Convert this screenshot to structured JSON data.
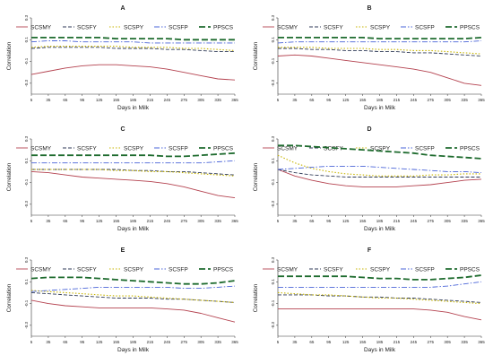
{
  "legend_labels": [
    "SCSMY",
    "SCSFY",
    "SCSPY",
    "SCSFP",
    "PPSCS"
  ],
  "colors": {
    "SCSMY": "#b4424f",
    "SCSFY": "#2f3a57",
    "SCSPY": "#c7b400",
    "SCSFP": "#4a64d8",
    "PPSCS": "#1e6b2e",
    "axis": "#333333",
    "background": "#ffffff"
  },
  "chart_data": [
    {
      "type": "line",
      "title": "A",
      "xlabel": "Days in Milk",
      "ylabel": "Correlation",
      "x": [
        5,
        35,
        65,
        95,
        125,
        155,
        185,
        215,
        245,
        275,
        305,
        335,
        365
      ],
      "x_ticks": [
        "5",
        "35",
        "65",
        "95",
        "125",
        "155",
        "185",
        "215",
        "245",
        "275",
        "305",
        "335",
        "365"
      ],
      "ylim": [
        -0.4,
        0.3
      ],
      "y_ticks": [
        "-0.3",
        "-0.1",
        "0.1",
        "0.3"
      ],
      "series": [
        {
          "name": "SCSMY",
          "values": [
            -0.22,
            -0.19,
            -0.16,
            -0.14,
            -0.13,
            -0.13,
            -0.14,
            -0.15,
            -0.17,
            -0.2,
            -0.23,
            -0.26,
            -0.27
          ]
        },
        {
          "name": "SCSFY",
          "values": [
            0.02,
            0.03,
            0.03,
            0.03,
            0.03,
            0.02,
            0.02,
            0.02,
            0.01,
            0.01,
            0.0,
            -0.01,
            -0.01
          ]
        },
        {
          "name": "SCSPY",
          "values": [
            0.03,
            0.04,
            0.04,
            0.04,
            0.04,
            0.04,
            0.03,
            0.03,
            0.03,
            0.02,
            0.02,
            0.01,
            0.0
          ]
        },
        {
          "name": "SCSFP",
          "values": [
            0.08,
            0.09,
            0.09,
            0.08,
            0.08,
            0.08,
            0.08,
            0.07,
            0.07,
            0.07,
            0.07,
            0.07,
            0.07
          ]
        },
        {
          "name": "PPSCS",
          "values": [
            0.12,
            0.12,
            0.12,
            0.12,
            0.12,
            0.11,
            0.11,
            0.11,
            0.11,
            0.1,
            0.1,
            0.1,
            0.1
          ]
        }
      ]
    },
    {
      "type": "line",
      "title": "B",
      "xlabel": "Days in Milk",
      "ylabel": "Correlation",
      "x": [
        5,
        35,
        65,
        95,
        125,
        155,
        185,
        215,
        245,
        275,
        305,
        335,
        365
      ],
      "x_ticks": [
        "5",
        "35",
        "65",
        "95",
        "125",
        "155",
        "185",
        "215",
        "245",
        "275",
        "305",
        "335",
        "365"
      ],
      "ylim": [
        -0.4,
        0.3
      ],
      "y_ticks": [
        "-0.3",
        "-0.1",
        "0.1",
        "0.3"
      ],
      "series": [
        {
          "name": "SCSMY",
          "values": [
            -0.05,
            -0.04,
            -0.05,
            -0.07,
            -0.09,
            -0.11,
            -0.13,
            -0.15,
            -0.17,
            -0.2,
            -0.25,
            -0.3,
            -0.32
          ]
        },
        {
          "name": "SCSFY",
          "values": [
            0.02,
            0.02,
            0.01,
            0.01,
            0.0,
            0.0,
            -0.01,
            -0.01,
            -0.02,
            -0.02,
            -0.03,
            -0.04,
            -0.05
          ]
        },
        {
          "name": "SCSPY",
          "values": [
            0.03,
            0.03,
            0.03,
            0.02,
            0.02,
            0.02,
            0.01,
            0.01,
            0.0,
            0.0,
            -0.01,
            -0.02,
            -0.03
          ]
        },
        {
          "name": "SCSFP",
          "values": [
            0.07,
            0.08,
            0.08,
            0.08,
            0.08,
            0.08,
            0.08,
            0.08,
            0.08,
            0.08,
            0.08,
            0.08,
            0.09
          ]
        },
        {
          "name": "PPSCS",
          "values": [
            0.12,
            0.12,
            0.12,
            0.12,
            0.12,
            0.12,
            0.11,
            0.11,
            0.11,
            0.11,
            0.11,
            0.11,
            0.12
          ]
        }
      ]
    },
    {
      "type": "line",
      "title": "C",
      "xlabel": "Days in Milk",
      "ylabel": "Correlation",
      "x": [
        5,
        35,
        65,
        95,
        125,
        155,
        185,
        215,
        245,
        275,
        305,
        335,
        365
      ],
      "x_ticks": [
        "5",
        "35",
        "65",
        "95",
        "125",
        "155",
        "185",
        "215",
        "245",
        "275",
        "305",
        "335",
        "365"
      ],
      "ylim": [
        -0.4,
        0.3
      ],
      "y_ticks": [
        "-0.3",
        "-0.1",
        "0.1",
        "0.3"
      ],
      "series": [
        {
          "name": "SCSMY",
          "values": [
            0.0,
            -0.01,
            -0.03,
            -0.05,
            -0.06,
            -0.07,
            -0.08,
            -0.09,
            -0.11,
            -0.14,
            -0.18,
            -0.22,
            -0.24
          ]
        },
        {
          "name": "SCSFY",
          "values": [
            0.02,
            0.02,
            0.02,
            0.02,
            0.02,
            0.02,
            0.01,
            0.01,
            0.0,
            0.0,
            -0.01,
            -0.02,
            -0.03
          ]
        },
        {
          "name": "SCSPY",
          "values": [
            0.02,
            0.02,
            0.02,
            0.02,
            0.02,
            0.01,
            0.01,
            0.0,
            0.0,
            -0.01,
            -0.02,
            -0.03,
            -0.04
          ]
        },
        {
          "name": "SCSFP",
          "values": [
            0.08,
            0.08,
            0.08,
            0.08,
            0.08,
            0.08,
            0.08,
            0.08,
            0.08,
            0.08,
            0.08,
            0.09,
            0.1
          ]
        },
        {
          "name": "PPSCS",
          "values": [
            0.15,
            0.15,
            0.15,
            0.15,
            0.15,
            0.15,
            0.15,
            0.15,
            0.14,
            0.14,
            0.15,
            0.16,
            0.17
          ]
        }
      ]
    },
    {
      "type": "line",
      "title": "D",
      "xlabel": "Days in Milk",
      "ylabel": "Correlation",
      "x": [
        5,
        35,
        65,
        95,
        125,
        155,
        185,
        215,
        245,
        275,
        305,
        335,
        365
      ],
      "x_ticks": [
        "5",
        "35",
        "65",
        "95",
        "125",
        "155",
        "185",
        "215",
        "245",
        "275",
        "305",
        "335",
        "365"
      ],
      "ylim": [
        -0.4,
        0.3
      ],
      "y_ticks": [
        "-0.3",
        "-0.1",
        "0.1",
        "0.3"
      ],
      "series": [
        {
          "name": "SCSMY",
          "values": [
            0.02,
            -0.04,
            -0.08,
            -0.11,
            -0.13,
            -0.14,
            -0.14,
            -0.14,
            -0.13,
            -0.12,
            -0.1,
            -0.08,
            -0.07
          ]
        },
        {
          "name": "SCSFY",
          "values": [
            0.02,
            -0.01,
            -0.03,
            -0.04,
            -0.05,
            -0.05,
            -0.05,
            -0.05,
            -0.05,
            -0.05,
            -0.05,
            -0.05,
            -0.05
          ]
        },
        {
          "name": "SCSPY",
          "values": [
            0.15,
            0.08,
            0.03,
            0.0,
            -0.02,
            -0.03,
            -0.04,
            -0.04,
            -0.04,
            -0.03,
            -0.03,
            -0.02,
            -0.02
          ]
        },
        {
          "name": "SCSFP",
          "values": [
            0.02,
            0.03,
            0.04,
            0.05,
            0.05,
            0.05,
            0.04,
            0.03,
            0.02,
            0.01,
            0.0,
            0.0,
            -0.01
          ]
        },
        {
          "name": "PPSCS",
          "values": [
            0.24,
            0.24,
            0.23,
            0.22,
            0.21,
            0.2,
            0.19,
            0.18,
            0.17,
            0.15,
            0.14,
            0.13,
            0.12
          ]
        }
      ]
    },
    {
      "type": "line",
      "title": "E",
      "xlabel": "Days in Milk",
      "ylabel": "Correlation",
      "x": [
        5,
        35,
        65,
        95,
        125,
        155,
        185,
        215,
        245,
        275,
        305,
        335,
        365
      ],
      "x_ticks": [
        "5",
        "35",
        "65",
        "95",
        "125",
        "155",
        "185",
        "215",
        "245",
        "275",
        "305",
        "335",
        "365"
      ],
      "ylim": [
        -0.4,
        0.3
      ],
      "y_ticks": [
        "-0.3",
        "-0.1",
        "0.1",
        "0.3"
      ],
      "series": [
        {
          "name": "SCSMY",
          "values": [
            -0.07,
            -0.1,
            -0.12,
            -0.13,
            -0.14,
            -0.14,
            -0.14,
            -0.14,
            -0.15,
            -0.16,
            -0.19,
            -0.23,
            -0.27
          ]
        },
        {
          "name": "SCSFY",
          "values": [
            0.0,
            -0.01,
            -0.02,
            -0.03,
            -0.04,
            -0.05,
            -0.05,
            -0.05,
            -0.06,
            -0.06,
            -0.07,
            -0.08,
            -0.09
          ]
        },
        {
          "name": "SCSPY",
          "values": [
            0.02,
            0.01,
            0.0,
            -0.01,
            -0.02,
            -0.03,
            -0.03,
            -0.04,
            -0.05,
            -0.06,
            -0.07,
            -0.08,
            -0.09
          ]
        },
        {
          "name": "SCSFP",
          "values": [
            0.01,
            0.02,
            0.03,
            0.04,
            0.05,
            0.05,
            0.05,
            0.05,
            0.05,
            0.04,
            0.04,
            0.05,
            0.06
          ]
        },
        {
          "name": "PPSCS",
          "values": [
            0.13,
            0.14,
            0.14,
            0.14,
            0.13,
            0.12,
            0.11,
            0.1,
            0.09,
            0.08,
            0.08,
            0.09,
            0.11
          ]
        }
      ]
    },
    {
      "type": "line",
      "title": "F",
      "xlabel": "Days in Milk",
      "ylabel": "Correlation",
      "x": [
        5,
        35,
        65,
        95,
        125,
        155,
        185,
        215,
        245,
        275,
        305,
        335,
        365
      ],
      "x_ticks": [
        "5",
        "35",
        "65",
        "95",
        "125",
        "155",
        "185",
        "215",
        "245",
        "275",
        "305",
        "335",
        "365"
      ],
      "ylim": [
        -0.4,
        0.3
      ],
      "y_ticks": [
        "-0.3",
        "-0.1",
        "0.1",
        "0.3"
      ],
      "series": [
        {
          "name": "SCSMY",
          "values": [
            -0.15,
            -0.15,
            -0.15,
            -0.15,
            -0.15,
            -0.15,
            -0.15,
            -0.15,
            -0.15,
            -0.16,
            -0.18,
            -0.22,
            -0.25
          ]
        },
        {
          "name": "SCSFY",
          "values": [
            -0.02,
            -0.02,
            -0.02,
            -0.03,
            -0.03,
            -0.04,
            -0.04,
            -0.05,
            -0.05,
            -0.06,
            -0.07,
            -0.08,
            -0.09
          ]
        },
        {
          "name": "SCSPY",
          "values": [
            0.0,
            -0.01,
            -0.02,
            -0.02,
            -0.03,
            -0.04,
            -0.05,
            -0.05,
            -0.06,
            -0.07,
            -0.08,
            -0.09,
            -0.1
          ]
        },
        {
          "name": "SCSFP",
          "values": [
            0.05,
            0.05,
            0.05,
            0.05,
            0.05,
            0.05,
            0.05,
            0.05,
            0.05,
            0.05,
            0.06,
            0.08,
            0.1
          ]
        },
        {
          "name": "PPSCS",
          "values": [
            0.15,
            0.15,
            0.15,
            0.15,
            0.15,
            0.14,
            0.13,
            0.13,
            0.12,
            0.12,
            0.13,
            0.14,
            0.16
          ]
        }
      ]
    }
  ]
}
